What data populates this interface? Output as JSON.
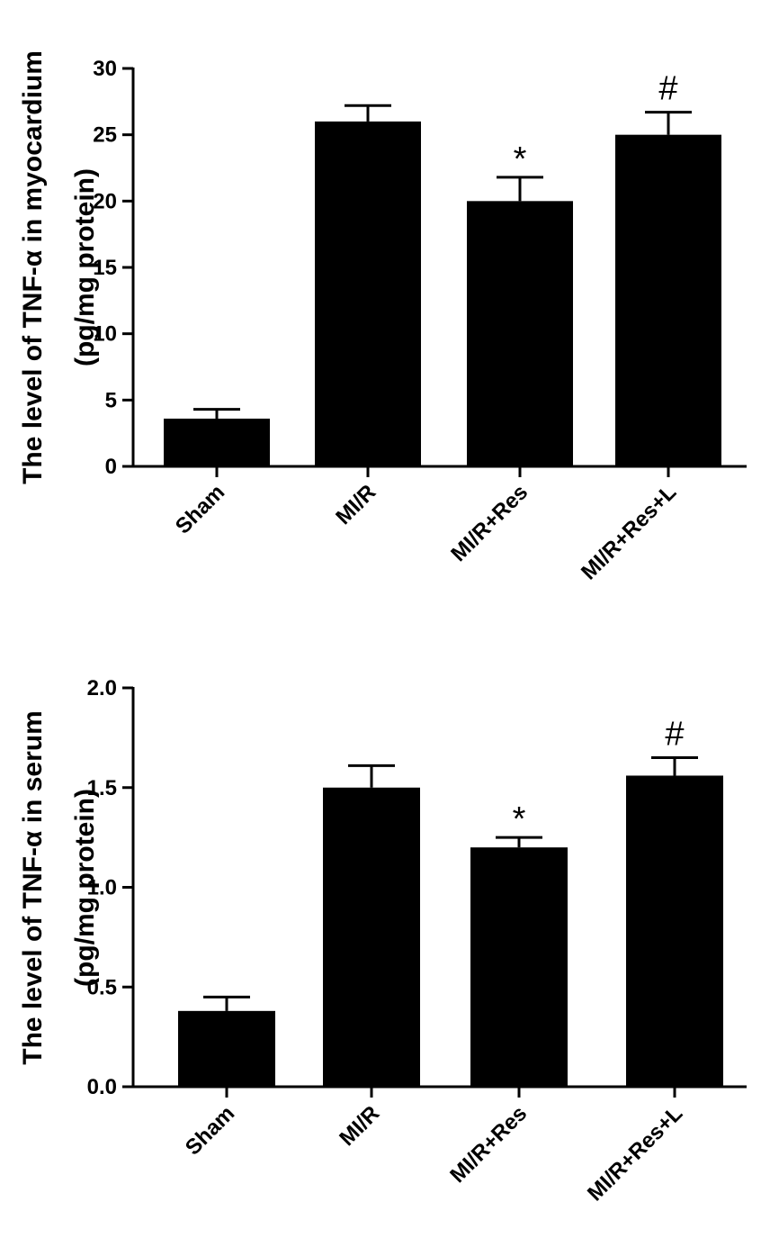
{
  "chart_data": [
    {
      "type": "bar",
      "title": "",
      "ylabel_line1": "The level of TNF-α in myocardium",
      "ylabel_line2": "(pg/mg protein)",
      "xlabel": "",
      "categories": [
        "Sham",
        "MI/R",
        "MI/R+Res",
        "MI/R+Res+L"
      ],
      "values": [
        3.6,
        26.0,
        20.0,
        25.0
      ],
      "errors": [
        0.7,
        1.2,
        1.8,
        1.7
      ],
      "annotations": [
        "",
        "",
        "*",
        "#"
      ],
      "ylim": [
        0,
        30
      ],
      "yticks": [
        0,
        5,
        10,
        15,
        20,
        25,
        30
      ],
      "ytick_labels": [
        "0",
        "5",
        "10",
        "15",
        "20",
        "25",
        "30"
      ],
      "grid": false,
      "bar_color": "#000000"
    },
    {
      "type": "bar",
      "title": "",
      "ylabel_line1": "The level of TNF-α in serum",
      "ylabel_line2": "(pg/mg protein)",
      "xlabel": "",
      "categories": [
        "Sham",
        "MI/R",
        "MI/R+Res",
        "MI/R+Res+L"
      ],
      "values": [
        0.38,
        1.5,
        1.2,
        1.56
      ],
      "errors": [
        0.07,
        0.11,
        0.05,
        0.09
      ],
      "annotations": [
        "",
        "",
        "*",
        "#"
      ],
      "ylim": [
        0,
        2.0
      ],
      "yticks": [
        0,
        0.5,
        1.0,
        1.5,
        2.0
      ],
      "ytick_labels": [
        "0.0",
        "0.5",
        "1.0",
        "1.5",
        "2.0"
      ],
      "grid": false,
      "bar_color": "#000000"
    }
  ]
}
